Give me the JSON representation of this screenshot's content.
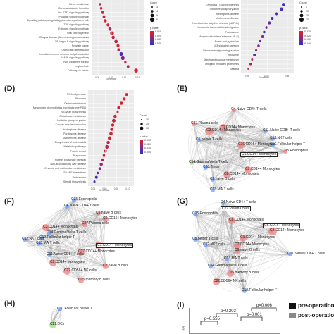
{
  "panels": {
    "B_terms": [
      "Other mental ness ",
      "Gonor acetal acts formation",
      "Jak-STAT signaling pathway",
      "Prolactin signaling pathway",
      "Signaling pathways regulating pluripotency of stem cells",
      "TNF signaling pathway",
      "Estrogen signaling pathway",
      "Viral carcinogenesis",
      "Chagas disease (American trypanosomiasis)",
      "NF-kappa B signaling pathway",
      "Prostate cancer",
      "Osteoclast differentiation",
      "Intestinal immune network for IgA production",
      "MAPK signaling pathway",
      "Type I diabetes mellitus",
      "Legionellosis",
      "Pathways in cancer"
    ],
    "C_terms": [
      "Glycolysis / Gluconeogenesis",
      "Oxidative phosphorylation",
      "Huntington's disease",
      "Alzheimer's disease",
      "Non-alcoholic fatty liver disease (NAFLD)",
      "Leukocyte transendothelial migration",
      "Proteasome",
      "Amyotrophic lateral sclerosis (ALS)",
      "Folate and pyrimidine",
      "p53 signaling pathway",
      "Glycosaminoglycan degradation",
      "Ribosome",
      "Starch and sucrose metabolism",
      "Ubiquitin mediated proteolysis",
      "Malaria"
    ],
    "D_terms": [
      "RNA polymerase",
      "Ribosome",
      "Carbon metabolism",
      "Metabolism of xenobiotics by cytochrome P450",
      "N-Glycan biosynthesis",
      "Glutathione metabolism",
      "Oxidative phosphorylation",
      "Cardiac muscle contraction",
      "Huntington's disease",
      "Parkinson's disease",
      "Alzheimer's disease",
      "Biosynthesis of amino acids",
      "Metabolic pathways",
      "Protein export",
      "Phagosome",
      "Platelet phosphate pathway",
      "Non-alcoholic fatty liver disease",
      "Cysteine and methionine metabolism",
      "SNARE interactions",
      "Proteasome",
      "Steroid biosynthesis"
    ],
    "B_ticks": [
      "0.08",
      "0.10",
      "0.12",
      "0.14"
    ],
    "C_ticks": [
      "0.04",
      "0.06",
      "0.08"
    ],
    "D_ticks": [
      "0.04",
      "0.06",
      "0.08",
      "0.10"
    ],
    "axis_label": "GeneRatio",
    "count_label": "Count",
    "padj_label": "p.value",
    "B_count_vals": [
      "3",
      "4",
      "5",
      "6"
    ],
    "C_count_vals": [
      "5",
      "10",
      "15",
      "20"
    ],
    "D_count_vals": [
      "10",
      "20",
      "30"
    ],
    "padj_vals": [
      "0.010",
      "0.020",
      "0.030",
      "0.040"
    ]
  },
  "labels": {
    "D": "(D)",
    "E": "(E)",
    "F": "(F)",
    "G": "(G)",
    "H": "(H)",
    "I": "(I)"
  },
  "network_E": {
    "nodes": [
      {
        "text": "C4.Naive CD4+ T cells"
      },
      {
        "text": "C27.Plasma cells"
      },
      {
        "text": "C3.CD14+ Monocytes"
      },
      {
        "text": "C11.Naive CD8+ T cells"
      },
      {
        "text": "C12.NKT cells"
      },
      {
        "text": "C1.CD14+ Monocytes"
      },
      {
        "text": "C25.Eosinophils"
      },
      {
        "text": "C10.Follicular helper T"
      },
      {
        "text": "C5.helper T cells"
      },
      {
        "text": "C6.CD14+ Monocytes"
      },
      {
        "text": "C14.Gamma/delta T cells"
      },
      {
        "text": "C16.CD16+ Monocytes"
      },
      {
        "text": "C7.CD14+ Monocytes"
      },
      {
        "text": "C8.CD14+ Monocytes"
      },
      {
        "text": "C9.naive B cells"
      },
      {
        "text": "C13.MAIT cells"
      },
      {
        "text": "C20.Tregs"
      }
    ]
  },
  "network_F": {
    "nodes": [
      {
        "text": "C25.Eosinophils"
      },
      {
        "text": "C4.Naive CD4+ T cells"
      },
      {
        "text": "C9.naive B cells"
      },
      {
        "text": "C6.CD16+ Monocytes"
      },
      {
        "text": "C27.Plasma cells"
      },
      {
        "text": "C3.CD14+ Monocytes"
      },
      {
        "text": "C14.Gamma/delta T cells"
      },
      {
        "text": "C12.NKT cells"
      },
      {
        "text": "C13.MAIT cells"
      },
      {
        "text": "C10.Follicular helper T"
      },
      {
        "text": "C1.CD14+ Monocytes"
      },
      {
        "text": "C11.Naive CD8+ T cells"
      },
      {
        "text": "C17.CD14+ Monocytes"
      },
      {
        "text": "C7.CD14+ Monocytes"
      },
      {
        "text": "C22.CD56+ NK cells"
      },
      {
        "text": "C15.memory B cells"
      },
      {
        "text": "C2.naive B cells"
      }
    ]
  },
  "network_G": {
    "nodes": [
      {
        "text": "C4.Naive CD4+ T cells"
      },
      {
        "text": "C27.Plasma cells"
      },
      {
        "text": "C25.Eosinophils"
      },
      {
        "text": "C8.CD14+ Monocytes"
      },
      {
        "text": "C6.CD16+ Monocytes"
      },
      {
        "text": "C3.CD14+ Monocytes"
      },
      {
        "text": "C5.helper T cells"
      },
      {
        "text": "C12.NKT cells"
      },
      {
        "text": "C1.CD14+ Monocytes"
      },
      {
        "text": "C11.Naive CD8+ T cells"
      },
      {
        "text": "C7.CD14+ Monocytes"
      },
      {
        "text": "C9.naive B cells"
      },
      {
        "text": "C13.MAIT cells"
      },
      {
        "text": "C14.Gamma/delta T cells"
      },
      {
        "text": "C15.memory B cells"
      },
      {
        "text": "C22.CD56+ NK cells"
      },
      {
        "text": "C10.Follicular helper T"
      }
    ]
  },
  "network_H": {
    "nodes": [
      {
        "text": "C10.Follicular helper T"
      },
      {
        "text": "C21.DCs"
      }
    ]
  },
  "panel_I": {
    "legend": [
      "pre-operation",
      "post-operation 0h"
    ],
    "pvals": [
      "p=0.555",
      "p=0.203",
      "p=0.001",
      "p=0.006"
    ],
    "ylabel": "RS"
  },
  "colors": {
    "dot_high": "#e8231f",
    "dot_low": "#2a2fd8",
    "node_red": "#f08080",
    "node_blue": "#6ea0ff",
    "node_green": "#9be07a",
    "edge": "#9a9a9a"
  }
}
